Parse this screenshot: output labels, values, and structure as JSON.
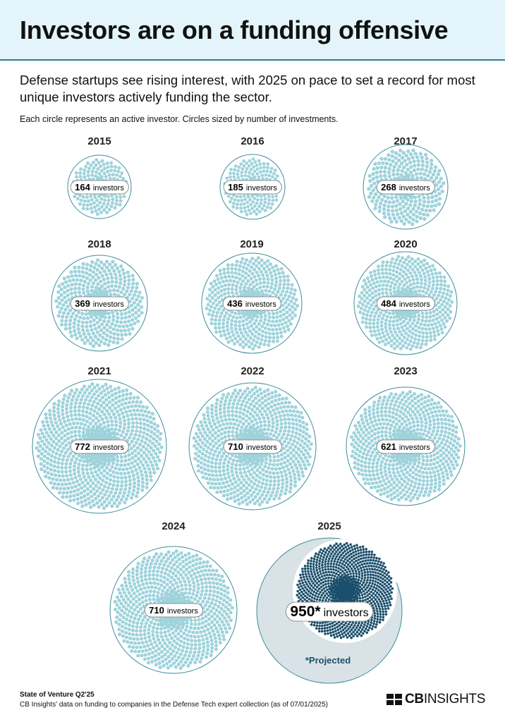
{
  "header": {
    "title": "Investors are on a funding offensive"
  },
  "subtitle": "Defense startups see rising interest, with 2025 on pace to set a record for most unique investors actively funding the sector.",
  "note": "Each circle represents an active investor. Circles sized by number of investments.",
  "chart_data": {
    "type": "packed-circles",
    "unit_label": "investors",
    "categories": [
      "2015",
      "2016",
      "2017",
      "2018",
      "2019",
      "2020",
      "2021",
      "2022",
      "2023",
      "2024",
      "2025"
    ],
    "values": [
      164,
      185,
      268,
      369,
      436,
      484,
      772,
      710,
      621,
      710,
      950
    ],
    "value_labels": [
      "164",
      "185",
      "268",
      "369",
      "436",
      "484",
      "772",
      "710",
      "621",
      "710",
      "950*"
    ],
    "projected": [
      false,
      false,
      false,
      false,
      false,
      false,
      false,
      false,
      false,
      false,
      true
    ],
    "projected_note": "*Projected",
    "colors": {
      "dot": "#9fd3dc",
      "outline": "#3d8f9a",
      "projected_dot": "#1b4f6b",
      "projected_bg": "#d9e2e6"
    }
  },
  "footer": {
    "source_title": "State of Venture Q2'25",
    "source_text": "CB Insights' data on funding to companies in the Defense Tech expert collection (as of 07/01/2025)",
    "logo_bold": "CB",
    "logo_rest": "INSIGHTS"
  }
}
